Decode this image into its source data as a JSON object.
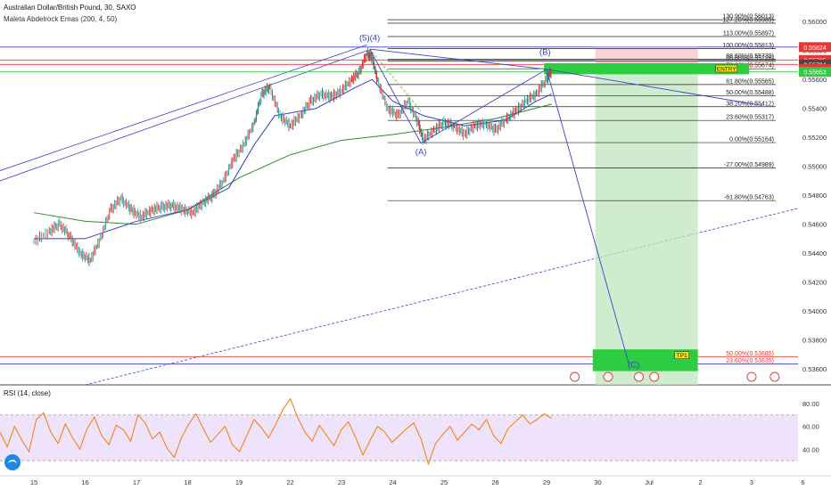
{
  "header": {
    "title": "Australian Dollar/British Pound, 30, SAXO",
    "indicator": "Maleta Abdelrock Emas (200, 4, 50)",
    "rsi_label": "RSI (14, close)"
  },
  "chart_data": {
    "type": "line",
    "price_axis": {
      "ticks": [
        0.56,
        0.558,
        0.556,
        0.554,
        0.552,
        0.55,
        0.548,
        0.546,
        0.544,
        0.542,
        0.54,
        0.538,
        0.536
      ],
      "tick_labels": [
        "0.56000",
        "0.55800",
        "0.55600",
        "0.55400",
        "0.55200",
        "0.55000",
        "0.54800",
        "0.54600",
        "0.54400",
        "0.54200",
        "0.54000",
        "0.53800",
        "0.53600"
      ],
      "range": [
        0.5349,
        0.561
      ]
    },
    "time_axis": {
      "labels": [
        "15",
        "16",
        "17",
        "18",
        "19",
        "22",
        "23",
        "24",
        "25",
        "26",
        "29",
        "30",
        "Jul",
        "2",
        "3",
        "6"
      ],
      "positions": [
        0,
        1,
        2,
        3,
        4,
        5,
        6,
        7,
        8,
        9,
        10,
        11,
        12,
        13,
        14,
        15
      ]
    },
    "price_tags": [
      {
        "label": "0.55824",
        "value": 0.55824,
        "color": "#e53935"
      },
      {
        "label": "0.55735",
        "value": 0.55735,
        "color": "#e53935"
      },
      {
        "label": "0.55704",
        "value": 0.55704,
        "color": "#4a4a4a"
      },
      {
        "label": "0.55672",
        "value": 0.55672,
        "color": "#e53935"
      },
      {
        "label": "0.55653",
        "value": 0.55653,
        "color": "#2ecc40"
      }
    ],
    "fib_levels": [
      {
        "label": "130.90%(0.56013)",
        "value": 0.56013
      },
      {
        "label": "127.20%(0.55989)",
        "value": 0.55989
      },
      {
        "label": "113.00%(0.55897)",
        "value": 0.55897
      },
      {
        "label": "100.00%(0.55813)",
        "value": 0.55813
      },
      {
        "label": "88.60%(0.55739)",
        "value": 0.55739
      },
      {
        "label": "86.60%(0.55726)",
        "value": 0.55726
      },
      {
        "label": "78.60%(0.55674)",
        "value": 0.55674
      },
      {
        "label": "61.80%(0.55565)",
        "value": 0.55565
      },
      {
        "label": "50.00%(0.55488)",
        "value": 0.55488
      },
      {
        "label": "38.20%(0.55412)",
        "value": 0.55412
      },
      {
        "label": "23.60%(0.55317)",
        "value": 0.55317
      },
      {
        "label": "0.00%(0.55164)",
        "value": 0.55164
      },
      {
        "label": "-27.00%(0.54989)",
        "value": 0.54989
      },
      {
        "label": "-61.80%(0.54763)",
        "value": 0.54763
      }
    ],
    "lower_fib_levels": [
      {
        "label": "50.00%(0.53685)",
        "value": 0.53685
      },
      {
        "label": "23.60%(0.53635)",
        "value": 0.53635
      }
    ],
    "wave_labels": [
      {
        "text": "(5)(4)",
        "x": 6.55,
        "y": 0.5587
      },
      {
        "text": "(A)",
        "x": 7.55,
        "y": 0.5508
      },
      {
        "text": "(B)",
        "x": 9.97,
        "y": 0.5577
      },
      {
        "text": "(C)",
        "x": 11.7,
        "y": 0.5361
      }
    ],
    "boxes": {
      "entry_label": "ENTRY",
      "tp_label": "TP1"
    },
    "price_path": [
      [
        0.0,
        0.5448
      ],
      [
        0.3,
        0.5455
      ],
      [
        0.5,
        0.546
      ],
      [
        0.7,
        0.5452
      ],
      [
        0.9,
        0.544
      ],
      [
        1.1,
        0.5435
      ],
      [
        1.3,
        0.545
      ],
      [
        1.5,
        0.547
      ],
      [
        1.7,
        0.5478
      ],
      [
        1.9,
        0.547
      ],
      [
        2.1,
        0.5465
      ],
      [
        2.3,
        0.547
      ],
      [
        2.5,
        0.5472
      ],
      [
        2.7,
        0.5473
      ],
      [
        2.9,
        0.547
      ],
      [
        3.1,
        0.5468
      ],
      [
        3.3,
        0.5475
      ],
      [
        3.5,
        0.548
      ],
      [
        3.7,
        0.549
      ],
      [
        3.9,
        0.5505
      ],
      [
        4.1,
        0.5515
      ],
      [
        4.3,
        0.553
      ],
      [
        4.45,
        0.555
      ],
      [
        4.6,
        0.5555
      ],
      [
        4.8,
        0.5535
      ],
      [
        5.0,
        0.5528
      ],
      [
        5.2,
        0.5535
      ],
      [
        5.4,
        0.5545
      ],
      [
        5.6,
        0.555
      ],
      [
        5.8,
        0.5548
      ],
      [
        6.0,
        0.5552
      ],
      [
        6.2,
        0.556
      ],
      [
        6.35,
        0.5565
      ],
      [
        6.5,
        0.5578
      ],
      [
        6.6,
        0.5575
      ],
      [
        6.7,
        0.556
      ],
      [
        6.9,
        0.554
      ],
      [
        7.1,
        0.5535
      ],
      [
        7.3,
        0.5545
      ],
      [
        7.5,
        0.553
      ],
      [
        7.6,
        0.5518
      ],
      [
        7.8,
        0.5525
      ],
      [
        8.0,
        0.553
      ],
      [
        8.2,
        0.5528
      ],
      [
        8.4,
        0.5522
      ],
      [
        8.6,
        0.5528
      ],
      [
        8.8,
        0.553
      ],
      [
        9.0,
        0.5525
      ],
      [
        9.2,
        0.5532
      ],
      [
        9.4,
        0.5538
      ],
      [
        9.6,
        0.5545
      ],
      [
        9.8,
        0.555
      ],
      [
        10.0,
        0.556
      ],
      [
        10.1,
        0.5566
      ]
    ],
    "ema_fast": [
      [
        0.0,
        0.545
      ],
      [
        1.0,
        0.545
      ],
      [
        2.0,
        0.5462
      ],
      [
        3.0,
        0.547
      ],
      [
        3.8,
        0.5485
      ],
      [
        4.3,
        0.5515
      ],
      [
        4.7,
        0.5535
      ],
      [
        5.5,
        0.554
      ],
      [
        6.3,
        0.5555
      ],
      [
        6.6,
        0.556
      ],
      [
        7.0,
        0.5545
      ],
      [
        7.6,
        0.5535
      ],
      [
        8.4,
        0.5528
      ],
      [
        9.2,
        0.5532
      ],
      [
        9.8,
        0.5545
      ],
      [
        10.1,
        0.555
      ]
    ],
    "ema_slow": [
      [
        0.0,
        0.5468
      ],
      [
        1.0,
        0.5462
      ],
      [
        2.0,
        0.546
      ],
      [
        3.0,
        0.547
      ],
      [
        4.0,
        0.5492
      ],
      [
        5.0,
        0.5508
      ],
      [
        6.0,
        0.5518
      ],
      [
        7.0,
        0.5522
      ],
      [
        8.0,
        0.5527
      ],
      [
        9.0,
        0.5533
      ],
      [
        10.1,
        0.5543
      ]
    ],
    "rsi": {
      "range": [
        20,
        90
      ],
      "tick_labels": [
        "80.00",
        "60.00",
        "40.00"
      ],
      "ticks": [
        80,
        60,
        40
      ],
      "upper": 70,
      "lower": 30,
      "values": [
        55,
        42,
        60,
        48,
        38,
        66,
        72,
        55,
        45,
        62,
        50,
        40,
        58,
        68,
        52,
        44,
        61,
        57,
        47,
        70,
        63,
        49,
        55,
        41,
        33,
        50,
        62,
        71,
        58,
        46,
        53,
        60,
        44,
        38,
        52,
        66,
        59,
        50,
        62,
        75,
        84,
        68,
        55,
        47,
        61,
        52,
        43,
        57,
        64,
        50,
        35,
        48,
        60,
        55,
        46,
        52,
        58,
        63,
        49,
        27,
        45,
        53,
        60,
        48,
        55,
        62,
        57,
        66,
        52,
        45,
        58,
        64,
        70,
        62,
        66,
        71,
        67
      ]
    }
  }
}
